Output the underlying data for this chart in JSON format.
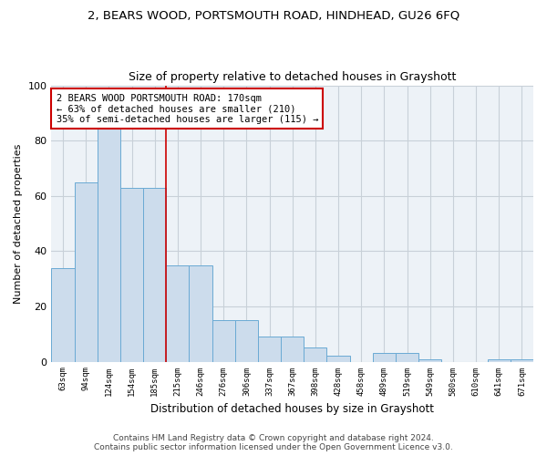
{
  "title1": "2, BEARS WOOD, PORTSMOUTH ROAD, HINDHEAD, GU26 6FQ",
  "title2": "Size of property relative to detached houses in Grayshott",
  "xlabel": "Distribution of detached houses by size in Grayshott",
  "ylabel": "Number of detached properties",
  "categories": [
    "63sqm",
    "94sqm",
    "124sqm",
    "154sqm",
    "185sqm",
    "215sqm",
    "246sqm",
    "276sqm",
    "306sqm",
    "337sqm",
    "367sqm",
    "398sqm",
    "428sqm",
    "458sqm",
    "489sqm",
    "519sqm",
    "549sqm",
    "580sqm",
    "610sqm",
    "641sqm",
    "671sqm"
  ],
  "values": [
    34,
    65,
    85,
    63,
    63,
    35,
    35,
    15,
    15,
    9,
    9,
    5,
    2,
    0,
    3,
    3,
    1,
    0,
    0,
    1,
    1
  ],
  "bar_color": "#ccdcec",
  "bar_edge_color": "#6aaad4",
  "vline_x": 4.5,
  "vline_color": "#cc0000",
  "annotation_text": "2 BEARS WOOD PORTSMOUTH ROAD: 170sqm\n← 63% of detached houses are smaller (210)\n35% of semi-detached houses are larger (115) →",
  "annotation_box_color": "#ffffff",
  "annotation_box_edge": "#cc0000",
  "footer": "Contains HM Land Registry data © Crown copyright and database right 2024.\nContains public sector information licensed under the Open Government Licence v3.0.",
  "ylim": [
    0,
    100
  ],
  "yticks": [
    0,
    20,
    40,
    60,
    80,
    100
  ],
  "grid_color": "#c8d0d8",
  "bg_color": "#edf2f7"
}
